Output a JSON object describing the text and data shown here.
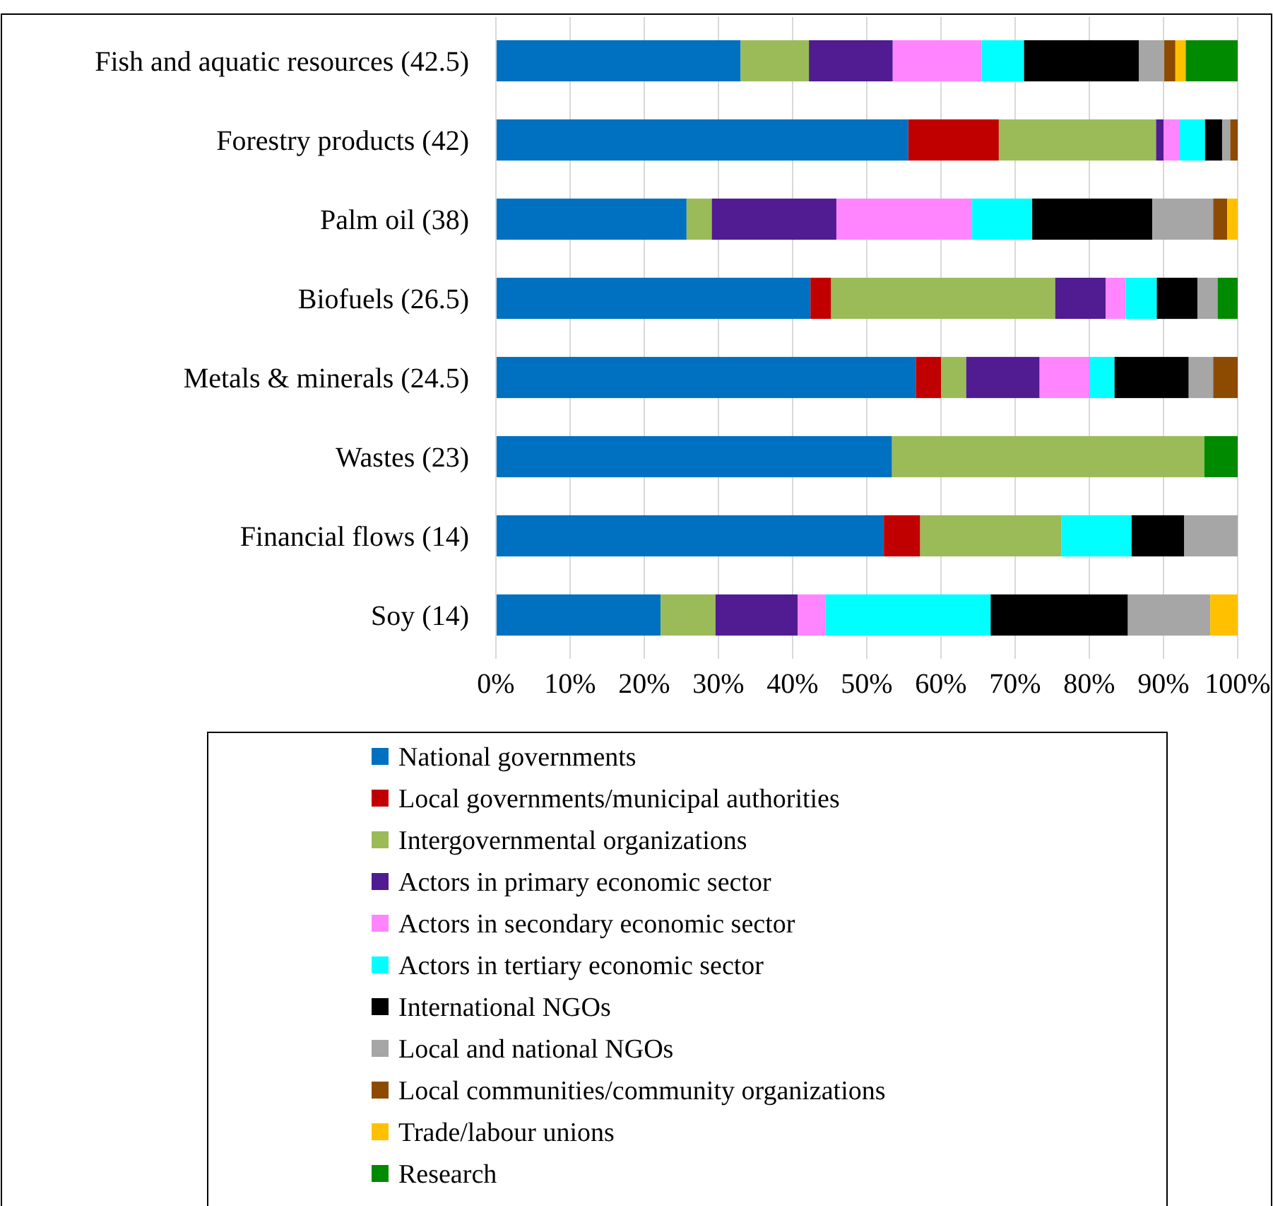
{
  "chart_data": {
    "type": "bar",
    "orientation": "horizontal",
    "stacked": true,
    "categories": [
      "Fish and aquatic resources (42.5)",
      "Forestry products (42)",
      "Palm oil (38)",
      "Biofuels (26.5)",
      "Metals & minerals (24.5)",
      "Wastes (23)",
      "Financial flows (14)",
      "Soy (14)"
    ],
    "series": [
      {
        "name": "National governments",
        "color": "#0070c0",
        "values": [
          33.0,
          55.6,
          25.7,
          42.4,
          56.6,
          53.4,
          52.3,
          22.2
        ]
      },
      {
        "name": "Local governments/municipal authorities",
        "color": "#c00000",
        "values": [
          null,
          12.2,
          null,
          2.8,
          3.4,
          null,
          4.9,
          null
        ]
      },
      {
        "name": "Intergovernmental organizations",
        "color": "#9bbb59",
        "values": [
          9.2,
          21.2,
          3.4,
          30.2,
          3.4,
          42.1,
          19.0,
          7.4
        ]
      },
      {
        "name": "Actors in primary economic sector",
        "color": "#511b91",
        "values": [
          11.3,
          1.0,
          16.8,
          6.8,
          9.9,
          null,
          null,
          11.1
        ]
      },
      {
        "name": "Actors in secondary economic sector",
        "color": "#ff85ff",
        "values": [
          12.0,
          2.2,
          18.3,
          2.7,
          6.7,
          null,
          null,
          3.7
        ]
      },
      {
        "name": "Actors in tertiary economic sector",
        "color": "#00ffff",
        "values": [
          5.7,
          3.4,
          8.1,
          4.2,
          3.4,
          null,
          9.5,
          22.3
        ]
      },
      {
        "name": "International NGOs",
        "color": "#000000",
        "values": [
          15.5,
          2.3,
          16.2,
          5.5,
          10.0,
          null,
          7.1,
          18.5
        ]
      },
      {
        "name": "Local and national NGOs",
        "color": "#a6a6a6",
        "values": [
          3.4,
          1.1,
          8.2,
          2.7,
          3.3,
          null,
          7.2,
          11.1
        ]
      },
      {
        "name": "Local communities/community organizations",
        "color": "#8c4b00",
        "values": [
          1.5,
          1.0,
          1.9,
          null,
          3.3,
          null,
          null,
          null
        ]
      },
      {
        "name": "Trade/labour unions",
        "color": "#ffc000",
        "values": [
          1.4,
          null,
          1.4,
          null,
          null,
          null,
          null,
          3.7
        ]
      },
      {
        "name": "Research",
        "color": "#008a00",
        "values": [
          7.0,
          null,
          null,
          2.7,
          null,
          4.5,
          null,
          null
        ]
      }
    ],
    "xlim": [
      0,
      100
    ],
    "xticks": [
      {
        "value": 0,
        "label": "0%"
      },
      {
        "value": 10,
        "label": "10%"
      },
      {
        "value": 20,
        "label": "20%"
      },
      {
        "value": 30,
        "label": "30%"
      },
      {
        "value": 40,
        "label": "40%"
      },
      {
        "value": 50,
        "label": "50%"
      },
      {
        "value": 60,
        "label": "60%"
      },
      {
        "value": 70,
        "label": "70%"
      },
      {
        "value": 80,
        "label": "80%"
      },
      {
        "value": 90,
        "label": "90%"
      },
      {
        "value": 100,
        "label": "100%"
      }
    ],
    "grid": "x",
    "legend": "bottom"
  }
}
